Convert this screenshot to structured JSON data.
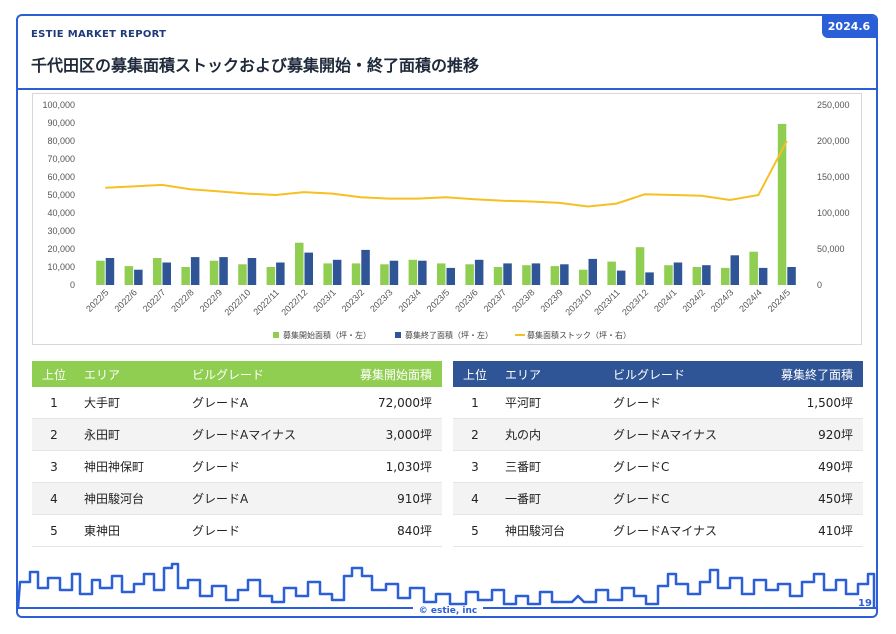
{
  "header": {
    "brand": "ESTIE MARKET REPORT",
    "date_badge": "2024.6",
    "title": "千代田区の募集面積ストックおよび募集開始・終了面積の推移"
  },
  "chart_data": {
    "type": "bar",
    "categories": [
      "2022/5",
      "2022/6",
      "2022/7",
      "2022/8",
      "2022/9",
      "2022/10",
      "2022/11",
      "2022/12",
      "2023/1",
      "2023/2",
      "2023/3",
      "2023/4",
      "2023/5",
      "2023/6",
      "2023/7",
      "2023/8",
      "2023/9",
      "2023/10",
      "2023/11",
      "2023/12",
      "2024/1",
      "2024/2",
      "2024/3",
      "2024/4",
      "2024/5"
    ],
    "series": [
      {
        "name": "募集開始面積（坪・左）",
        "type": "bar",
        "axis": "left",
        "color": "#8fce50",
        "values": [
          13500,
          10500,
          15000,
          10000,
          13500,
          11500,
          10000,
          23500,
          12000,
          12000,
          11500,
          14000,
          12000,
          11500,
          10000,
          11000,
          10500,
          8500,
          13000,
          21000,
          11000,
          10000,
          9500,
          18500,
          89500
        ]
      },
      {
        "name": "募集終了面積（坪・左）",
        "type": "bar",
        "axis": "left",
        "color": "#2f5596",
        "values": [
          15000,
          8500,
          12500,
          15500,
          15500,
          15000,
          12500,
          18000,
          14000,
          19500,
          13500,
          13500,
          9500,
          14000,
          12000,
          12000,
          11500,
          14500,
          8000,
          7000,
          12500,
          11000,
          16500,
          9500,
          10000
        ]
      },
      {
        "name": "募集面積ストック（坪・右）",
        "type": "line",
        "axis": "right",
        "color": "#f5c022",
        "values": [
          135000,
          137000,
          139000,
          133000,
          130000,
          127000,
          125000,
          129000,
          127000,
          122000,
          120000,
          120000,
          122000,
          119000,
          117000,
          116000,
          114000,
          109000,
          113000,
          126000,
          125000,
          124000,
          118000,
          125000,
          200000
        ]
      }
    ],
    "y_left": {
      "min": 0,
      "max": 100000,
      "ticks": [
        "0",
        "10,000",
        "20,000",
        "30,000",
        "40,000",
        "50,000",
        "60,000",
        "70,000",
        "80,000",
        "90,000",
        "100,000"
      ]
    },
    "y_right": {
      "min": 0,
      "max": 250000,
      "ticks": [
        "0",
        "50,000",
        "100,000",
        "150,000",
        "200,000",
        "250,000"
      ]
    },
    "legend_position": "bottom",
    "grid": false
  },
  "table_start": {
    "headers": [
      "上位",
      "エリア",
      "ビルグレード",
      "募集開始面積"
    ],
    "rows": [
      [
        "1",
        "大手町",
        "グレードA",
        "72,000坪"
      ],
      [
        "2",
        "永田町",
        "グレードAマイナス",
        "3,000坪"
      ],
      [
        "3",
        "神田神保町",
        "グレード",
        "1,030坪"
      ],
      [
        "4",
        "神田駿河台",
        "グレードA",
        "910坪"
      ],
      [
        "5",
        "東神田",
        "グレード",
        "840坪"
      ]
    ]
  },
  "table_end": {
    "headers": [
      "上位",
      "エリア",
      "ビルグレード",
      "募集終了面積"
    ],
    "rows": [
      [
        "1",
        "平河町",
        "グレード",
        "1,500坪"
      ],
      [
        "2",
        "丸の内",
        "グレードAマイナス",
        "920坪"
      ],
      [
        "3",
        "三番町",
        "グレードC",
        "490坪"
      ],
      [
        "4",
        "一番町",
        "グレードC",
        "450坪"
      ],
      [
        "5",
        "神田駿河台",
        "グレードAマイナス",
        "410坪"
      ]
    ]
  },
  "footer": {
    "copyright": "© estie, inc",
    "page": "19"
  },
  "colors": {
    "accent": "#2a5fd8",
    "navy": "#2f5596",
    "green": "#8fce50",
    "line": "#f5c022"
  }
}
